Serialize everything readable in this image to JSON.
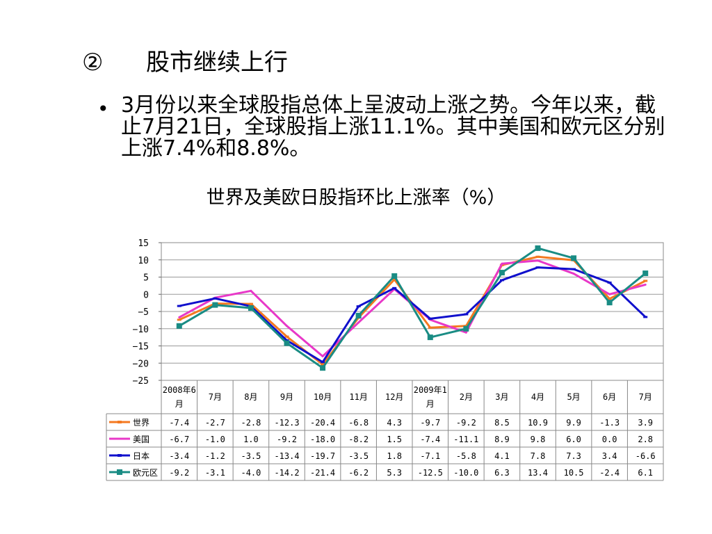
{
  "heading": {
    "number": "②",
    "text": "股市继续上行"
  },
  "bullet": {
    "symbol": "•",
    "text": "3月份以来全球股指总体上呈波动上涨之势。今年以来，截止7月21日，全球股指上涨11.1%。其中美国和欧元区分别上涨7.4%和8.8%。"
  },
  "chart_data": {
    "type": "line",
    "title": "世界及美欧日股指环比上涨率（%）",
    "categories": [
      "2008年6月",
      "7月",
      "8月",
      "9月",
      "10月",
      "11月",
      "12月",
      "2009年1月",
      "2月",
      "3月",
      "4月",
      "5月",
      "6月",
      "7月"
    ],
    "ylim": [
      -25,
      15
    ],
    "yticks": [
      15,
      10,
      5,
      0,
      -5,
      -10,
      -15,
      -20,
      -25
    ],
    "grid": true,
    "legend_position": "table-left",
    "series": [
      {
        "name": "世界",
        "color": "#F47920",
        "marker": "dash",
        "values": [
          -7.4,
          -2.7,
          -2.8,
          -12.3,
          -20.4,
          -6.8,
          4.3,
          -9.7,
          -9.2,
          8.5,
          10.9,
          9.9,
          -1.3,
          3.9
        ],
        "labels": [
          "-7.4",
          "-2.7",
          "-2.8",
          "-12.3",
          "-20.4",
          "-6.8",
          "4.3",
          "-9.7",
          "-9.2",
          "8.5",
          "10.9",
          "9.9",
          "-1.3",
          "3.9"
        ]
      },
      {
        "name": "美国",
        "color": "#E838C8",
        "marker": "none",
        "values": [
          -6.7,
          -1.0,
          1.0,
          -9.2,
          -18.0,
          -8.2,
          1.5,
          -7.4,
          -11.1,
          8.9,
          9.8,
          6.0,
          0.0,
          2.8
        ],
        "labels": [
          "-6.7",
          "-1.0",
          "1.0",
          "-9.2",
          "-18.0",
          "-8.2",
          "1.5",
          "-7.4",
          "-11.1",
          "8.9",
          "9.8",
          "6.0",
          "0.0",
          "2.8"
        ]
      },
      {
        "name": "日本",
        "color": "#1010CC",
        "marker": "dash",
        "values": [
          -3.4,
          -1.2,
          -3.5,
          -13.4,
          -19.7,
          -3.5,
          1.8,
          -7.1,
          -5.8,
          4.1,
          7.8,
          7.3,
          3.4,
          -6.6
        ],
        "labels": [
          "-3.4",
          "-1.2",
          "-3.5",
          "-13.4",
          "-19.7",
          "-3.5",
          "1.8",
          "-7.1",
          "-5.8",
          "4.1",
          "7.8",
          "7.3",
          "3.4",
          "-6.6"
        ]
      },
      {
        "name": "欧元区",
        "color": "#1A8C84",
        "marker": "square",
        "values": [
          -9.2,
          -3.1,
          -4.0,
          -14.2,
          -21.4,
          -6.2,
          5.3,
          -12.5,
          -10.0,
          6.3,
          13.4,
          10.5,
          -2.4,
          6.1
        ],
        "labels": [
          "-9.2",
          "-3.1",
          "-4.0",
          "-14.2",
          "-21.4",
          "-6.2",
          "5.3",
          "-12.5",
          "-10.0",
          "6.3",
          "13.4",
          "10.5",
          "-2.4",
          "6.1"
        ]
      }
    ]
  }
}
